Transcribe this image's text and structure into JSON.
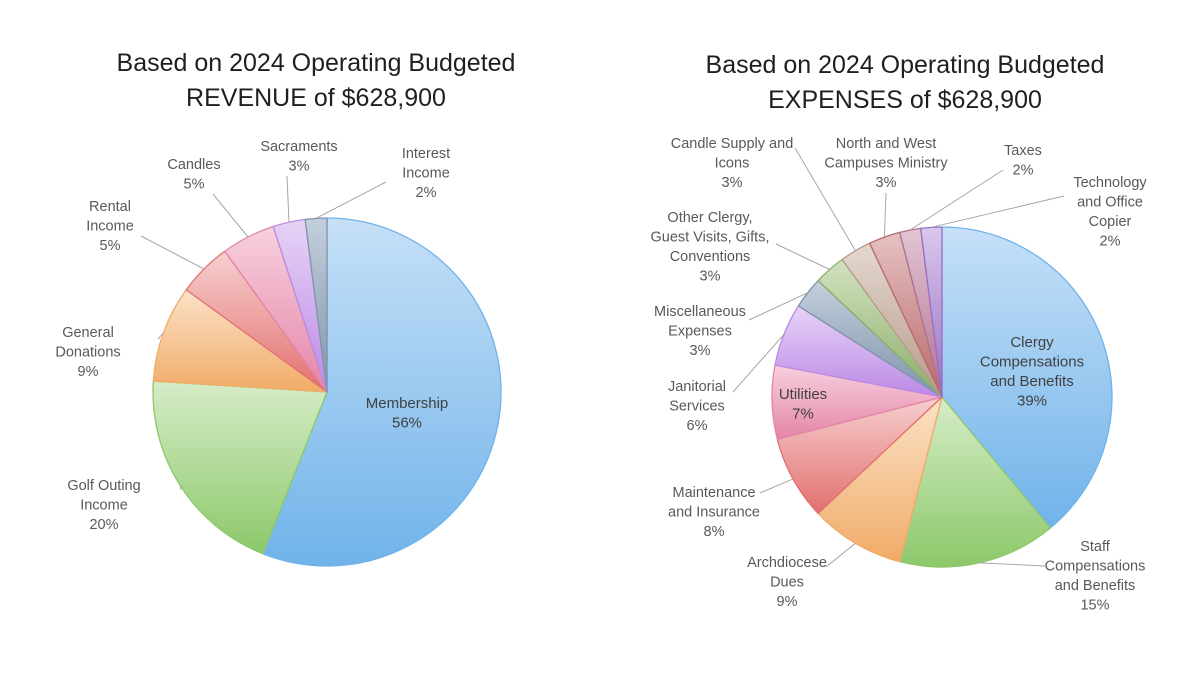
{
  "chart_data": [
    {
      "type": "pie",
      "title": [
        "Based on 2024 Operating Budgeted",
        "REVENUE of $628,900"
      ],
      "start_angle": 0,
      "direction": "clockwise",
      "slices": [
        {
          "label": "Membership",
          "pct_label": "56%",
          "value": 56,
          "color": "#70b3ea",
          "light": "#c6e0f7"
        },
        {
          "label": "Golf Outing Income",
          "pct_label": "20%",
          "value": 20,
          "color": "#8cc86a",
          "light": "#d6ecc8"
        },
        {
          "label": "General Donations",
          "pct_label": "9%",
          "value": 9,
          "color": "#f0ab67",
          "light": "#fbe2c8"
        },
        {
          "label": "Rental Income",
          "pct_label": "5%",
          "value": 5,
          "color": "#e3706f",
          "light": "#f6cfcf"
        },
        {
          "label": "Candles",
          "pct_label": "5%",
          "value": 5,
          "color": "#e485a8",
          "light": "#f7d0df"
        },
        {
          "label": "Sacraments",
          "pct_label": "3%",
          "value": 3,
          "color": "#bc89e6",
          "light": "#e6d3f6"
        },
        {
          "label": "Interest Income",
          "pct_label": "2%",
          "value": 2,
          "color": "#7f94ab",
          "light": "#c3cfdc"
        }
      ]
    },
    {
      "type": "pie",
      "title": [
        "Based on 2024 Operating Budgeted",
        "EXPENSES of $628,900"
      ],
      "start_angle": 0,
      "direction": "clockwise",
      "slices": [
        {
          "label": "Clergy Compensations and Benefits",
          "pct_label": "39%",
          "value": 39,
          "color": "#70b3ea",
          "light": "#c6e0f7"
        },
        {
          "label": "Staff Compensations and Benefits",
          "pct_label": "15%",
          "value": 15,
          "color": "#8cc86a",
          "light": "#d6ecc8"
        },
        {
          "label": "Archdiocese Dues",
          "pct_label": "9%",
          "value": 9,
          "color": "#f0ab67",
          "light": "#fbe2c8"
        },
        {
          "label": "Maintenance and Insurance",
          "pct_label": "8%",
          "value": 8,
          "color": "#e3706f",
          "light": "#f6cfcf"
        },
        {
          "label": "Utilities",
          "pct_label": "7%",
          "value": 7,
          "color": "#e485a8",
          "light": "#f7d0df"
        },
        {
          "label": "Janitorial Services",
          "pct_label": "6%",
          "value": 6,
          "color": "#bc89e6",
          "light": "#e6d3f6"
        },
        {
          "label": "Miscellaneous Expenses",
          "pct_label": "3%",
          "value": 3,
          "color": "#7f94ab",
          "light": "#c3cfdc"
        },
        {
          "label": "Other Clergy, Guest Visits, Gifts, Conventions",
          "pct_label": "3%",
          "value": 3,
          "color": "#8cae6a",
          "light": "#d2e2c0"
        },
        {
          "label": "Candle Supply and Icons",
          "pct_label": "3%",
          "value": 3,
          "color": "#b69b8a",
          "light": "#e4d8cf"
        },
        {
          "label": "North and West Campuses Ministry",
          "pct_label": "3%",
          "value": 3,
          "color": "#b8686a",
          "light": "#e6c2c3"
        },
        {
          "label": "Taxes",
          "pct_label": "2%",
          "value": 2,
          "color": "#b07090",
          "light": "#e2c6d4"
        },
        {
          "label": "Technology and Office Copier",
          "pct_label": "2%",
          "value": 2,
          "color": "#9a6fc4",
          "light": "#d9c8ec"
        }
      ]
    }
  ]
}
